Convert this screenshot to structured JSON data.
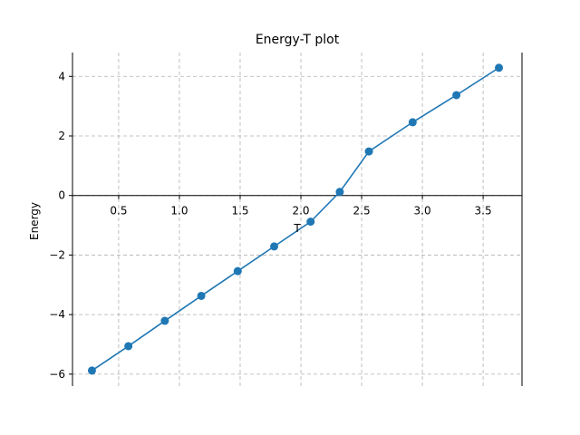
{
  "chart_data": {
    "type": "line",
    "title": "Energy-T plot",
    "xlabel": "T",
    "ylabel": "Energy",
    "xlim": [
      0.12,
      3.82
    ],
    "ylim": [
      -6.4,
      4.8
    ],
    "xticks": [
      0.5,
      1.0,
      1.5,
      2.0,
      2.5,
      3.0,
      3.5
    ],
    "xtick_labels": [
      "0.5",
      "1.0",
      "1.5",
      "2.0",
      "2.5",
      "3.0",
      "3.5"
    ],
    "yticks": [
      -6,
      -4,
      -2,
      0,
      2,
      4
    ],
    "ytick_labels": [
      "−6",
      "−4",
      "−2",
      "0",
      "2",
      "4"
    ],
    "grid": true,
    "series": [
      {
        "color": "#1f77b4",
        "marker": "circle",
        "x": [
          0.28,
          0.58,
          0.88,
          1.18,
          1.48,
          1.78,
          2.08,
          2.32,
          2.56,
          2.92,
          3.28,
          3.63
        ],
        "y": [
          -5.88,
          -5.06,
          -4.21,
          -3.37,
          -2.54,
          -1.71,
          -0.88,
          0.12,
          1.48,
          2.46,
          3.37,
          4.29
        ]
      }
    ]
  }
}
